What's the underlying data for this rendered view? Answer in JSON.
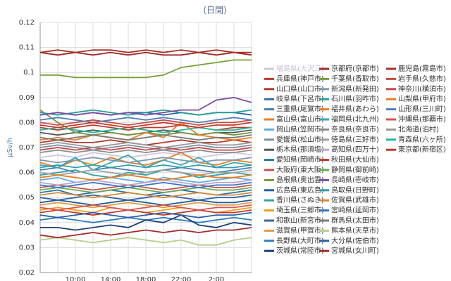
{
  "chart_data": {
    "type": "line",
    "title": "(日間)",
    "y_label": "μSv/h",
    "categories": [
      null,
      null,
      "10:00",
      null,
      "14:00",
      null,
      "18:00",
      null,
      "22:00",
      null,
      "2:00",
      null,
      null
    ],
    "ylim": [
      0.02,
      0.12
    ],
    "yticks": [
      0.02,
      0.03,
      0.04,
      0.05,
      0.06,
      0.07,
      0.08,
      0.09,
      0.1,
      0.11,
      0.12
    ],
    "grid": true,
    "series": [
      {
        "name": "福島県(大沢三)",
        "color": "#d0c8dc",
        "values": [
          0.066,
          0.067,
          0.066,
          0.068,
          0.067,
          0.066,
          0.067,
          0.068,
          0.067,
          0.066,
          0.067,
          0.068,
          0.067
        ]
      },
      {
        "name": "兵庫県(神戸市)",
        "color": "#c0392b",
        "values": [
          0.078,
          0.077,
          0.078,
          0.079,
          0.078,
          0.077,
          0.078,
          0.078,
          0.079,
          0.078,
          0.077,
          0.078,
          0.078
        ]
      },
      {
        "name": "山口県(山口市)",
        "color": "#b03a2e",
        "values": [
          0.072,
          0.073,
          0.072,
          0.072,
          0.073,
          0.072,
          0.071,
          0.072,
          0.073,
          0.072,
          0.072,
          0.073,
          0.072
        ]
      },
      {
        "name": "岐阜県(下呂市)",
        "color": "#2e6da4",
        "values": [
          0.083,
          0.084,
          0.083,
          0.084,
          0.083,
          0.084,
          0.084,
          0.083,
          0.084,
          0.083,
          0.084,
          0.084,
          0.083
        ]
      },
      {
        "name": "三重県(尾鷲市)",
        "color": "#4a7ab8",
        "values": [
          0.061,
          0.062,
          0.06,
          0.061,
          0.062,
          0.061,
          0.06,
          0.061,
          0.062,
          0.061,
          0.06,
          0.061,
          0.062
        ]
      },
      {
        "name": "富山県(富山市)",
        "color": "#e67e22",
        "values": [
          0.064,
          0.062,
          0.065,
          0.063,
          0.066,
          0.064,
          0.063,
          0.065,
          0.068,
          0.064,
          0.063,
          0.065,
          0.064
        ]
      },
      {
        "name": "岡山県(笠岡市)",
        "color": "#5dade2",
        "values": [
          0.057,
          0.058,
          0.056,
          0.057,
          0.058,
          0.057,
          0.056,
          0.058,
          0.057,
          0.056,
          0.057,
          0.058,
          0.057
        ]
      },
      {
        "name": "愛媛県(松山市)",
        "color": "#7f8fa6",
        "values": [
          0.07,
          0.071,
          0.07,
          0.069,
          0.07,
          0.071,
          0.07,
          0.069,
          0.07,
          0.071,
          0.07,
          0.07,
          0.071
        ]
      },
      {
        "name": "栃木県(那須塩)",
        "color": "#555555",
        "values": [
          0.076,
          0.075,
          0.076,
          0.077,
          0.076,
          0.075,
          0.076,
          0.077,
          0.076,
          0.075,
          0.076,
          0.076,
          0.077
        ]
      },
      {
        "name": "愛知県(岡崎市)",
        "color": "#2874a6",
        "values": [
          0.052,
          0.053,
          0.051,
          0.052,
          0.053,
          0.052,
          0.051,
          0.052,
          0.053,
          0.052,
          0.051,
          0.052,
          0.053
        ]
      },
      {
        "name": "大阪府(東大阪)",
        "color": "#c0504d",
        "values": [
          0.054,
          0.055,
          0.054,
          0.053,
          0.054,
          0.055,
          0.054,
          0.053,
          0.054,
          0.055,
          0.054,
          0.054,
          0.055
        ]
      },
      {
        "name": "島根県(奥出雲)",
        "color": "#77933c",
        "values": [
          0.085,
          0.08,
          0.076,
          0.075,
          0.076,
          0.075,
          0.076,
          0.075,
          0.076,
          0.075,
          0.076,
          0.075,
          0.076
        ]
      },
      {
        "name": "広島県(東広島)",
        "color": "#1f5fa0",
        "values": [
          0.048,
          0.049,
          0.048,
          0.047,
          0.048,
          0.049,
          0.048,
          0.047,
          0.048,
          0.049,
          0.048,
          0.048,
          0.049
        ]
      },
      {
        "name": "香川県(さぬき)",
        "color": "#31a3a3",
        "values": [
          0.059,
          0.06,
          0.061,
          0.059,
          0.058,
          0.06,
          0.059,
          0.061,
          0.06,
          0.058,
          0.059,
          0.06,
          0.059
        ]
      },
      {
        "name": "埼玉県(三郷市)",
        "color": "#f39c12",
        "values": [
          0.045,
          0.046,
          0.045,
          0.044,
          0.046,
          0.045,
          0.044,
          0.045,
          0.046,
          0.045,
          0.044,
          0.045,
          0.046
        ]
      },
      {
        "name": "和歌山(新宮市)",
        "color": "#3465a4",
        "values": [
          0.05,
          0.049,
          0.05,
          0.051,
          0.05,
          0.049,
          0.05,
          0.051,
          0.05,
          0.049,
          0.05,
          0.05,
          0.051
        ]
      },
      {
        "name": "滋賀県(甲賀市)",
        "color": "#e59a3c",
        "values": [
          0.047,
          0.048,
          0.047,
          0.046,
          0.047,
          0.048,
          0.047,
          0.046,
          0.047,
          0.048,
          0.047,
          0.047,
          0.048
        ]
      },
      {
        "name": "長野県(大町市)",
        "color": "#2d7fc0",
        "values": [
          0.041,
          0.042,
          0.041,
          0.04,
          0.041,
          0.042,
          0.041,
          0.042,
          0.041,
          0.04,
          0.041,
          0.042,
          0.041
        ]
      },
      {
        "name": "茨城県(常陸市)",
        "color": "#1d3f78",
        "values": [
          0.038,
          0.038,
          0.037,
          0.038,
          0.039,
          0.038,
          0.041,
          0.04,
          0.043,
          0.039,
          0.038,
          0.04,
          0.039
        ]
      },
      {
        "name": "京都府(京都市)",
        "color": "#9b2c2c",
        "values": [
          0.108,
          0.107,
          0.108,
          0.107,
          0.108,
          0.107,
          0.108,
          0.107,
          0.107,
          0.108,
          0.107,
          0.108,
          0.107
        ]
      },
      {
        "name": "千葉県(香取市)",
        "color": "#76a033",
        "values": [
          0.099,
          0.099,
          0.098,
          0.098,
          0.098,
          0.098,
          0.098,
          0.099,
          0.102,
          0.103,
          0.104,
          0.105,
          0.105
        ]
      },
      {
        "name": "新潟県(新発田)",
        "color": "#8496b0",
        "values": [
          0.065,
          0.064,
          0.065,
          0.066,
          0.065,
          0.064,
          0.065,
          0.066,
          0.065,
          0.064,
          0.065,
          0.065,
          0.066
        ]
      },
      {
        "name": "石川県(羽咋市)",
        "color": "#2aa198",
        "values": [
          0.084,
          0.083,
          0.084,
          0.085,
          0.084,
          0.083,
          0.084,
          0.085,
          0.084,
          0.083,
          0.084,
          0.084,
          0.085
        ]
      },
      {
        "name": "福井県(あわら)",
        "color": "#e8802a",
        "values": [
          0.073,
          0.074,
          0.073,
          0.075,
          0.074,
          0.073,
          0.076,
          0.074,
          0.08,
          0.075,
          0.074,
          0.073,
          0.074
        ]
      },
      {
        "name": "福岡県(北九州)",
        "color": "#3aa6b9",
        "values": [
          0.063,
          0.062,
          0.066,
          0.061,
          0.064,
          0.067,
          0.062,
          0.065,
          0.063,
          0.066,
          0.062,
          0.064,
          0.063
        ]
      },
      {
        "name": "奈良県(奈良市)",
        "color": "#8c8c8c",
        "values": [
          0.068,
          0.069,
          0.068,
          0.069,
          0.068,
          0.069,
          0.068,
          0.069,
          0.068,
          0.069,
          0.068,
          0.068,
          0.069
        ]
      },
      {
        "name": "徳島県(三好市)",
        "color": "#a0a0a0",
        "values": [
          0.06,
          0.059,
          0.06,
          0.061,
          0.06,
          0.059,
          0.06,
          0.061,
          0.06,
          0.059,
          0.06,
          0.06,
          0.061
        ]
      },
      {
        "name": "高知県(四万十)",
        "color": "#b8a8d0",
        "values": [
          0.056,
          0.055,
          0.056,
          0.057,
          0.056,
          0.055,
          0.056,
          0.057,
          0.056,
          0.055,
          0.056,
          0.056,
          0.057
        ]
      },
      {
        "name": "秋田県(大仙市)",
        "color": "#c0392b",
        "values": [
          0.044,
          0.045,
          0.044,
          0.043,
          0.044,
          0.045,
          0.044,
          0.043,
          0.044,
          0.045,
          0.044,
          0.044,
          0.045
        ]
      },
      {
        "name": "静岡県(御前崎)",
        "color": "#6aa84f",
        "values": [
          0.053,
          0.054,
          0.053,
          0.052,
          0.053,
          0.054,
          0.053,
          0.052,
          0.053,
          0.054,
          0.053,
          0.053,
          0.054
        ]
      },
      {
        "name": "長崎県(壱岐市)",
        "color": "#7b4ea3",
        "values": [
          0.083,
          0.084,
          0.083,
          0.084,
          0.083,
          0.084,
          0.083,
          0.084,
          0.085,
          0.085,
          0.089,
          0.09,
          0.088
        ]
      },
      {
        "name": "鳥取県(日野町)",
        "color": "#2c9fa8",
        "values": [
          0.062,
          0.063,
          0.062,
          0.063,
          0.062,
          0.063,
          0.062,
          0.063,
          0.062,
          0.063,
          0.062,
          0.062,
          0.063
        ]
      },
      {
        "name": "佐賀県(武雄市)",
        "color": "#d68a3a",
        "values": [
          0.051,
          0.052,
          0.051,
          0.05,
          0.051,
          0.052,
          0.051,
          0.05,
          0.051,
          0.052,
          0.051,
          0.051,
          0.052
        ]
      },
      {
        "name": "宮崎県(延岡市)",
        "color": "#3a75c4",
        "values": [
          0.055,
          0.054,
          0.055,
          0.056,
          0.055,
          0.054,
          0.055,
          0.056,
          0.055,
          0.054,
          0.055,
          0.055,
          0.056
        ]
      },
      {
        "name": "群馬県(太田市)",
        "color": "#7a7a7a",
        "values": [
          0.074,
          0.073,
          0.074,
          0.075,
          0.074,
          0.073,
          0.074,
          0.075,
          0.074,
          0.073,
          0.074,
          0.074,
          0.075
        ]
      },
      {
        "name": "熊本県(天草市)",
        "color": "#b5d08a",
        "values": [
          0.033,
          0.034,
          0.033,
          0.032,
          0.033,
          0.034,
          0.033,
          0.032,
          0.033,
          0.031,
          0.031,
          0.033,
          0.034
        ]
      },
      {
        "name": "大分県(佐伯市)",
        "color": "#2e5fa8",
        "values": [
          0.043,
          0.042,
          0.043,
          0.044,
          0.043,
          0.042,
          0.043,
          0.044,
          0.043,
          0.042,
          0.043,
          0.043,
          0.044
        ]
      },
      {
        "name": "宮城県(女川町)",
        "color": "#a52a2a",
        "values": [
          0.035,
          0.034,
          0.035,
          0.036,
          0.035,
          0.036,
          0.037,
          0.036,
          0.037,
          0.036,
          0.037,
          0.037,
          0.038
        ]
      },
      {
        "name": "鹿児島(霧島市)",
        "color": "#a93226",
        "values": [
          0.108,
          0.109,
          0.108,
          0.109,
          0.109,
          0.108,
          0.109,
          0.108,
          0.109,
          0.108,
          0.109,
          0.108,
          0.108
        ]
      },
      {
        "name": "岩手県(久慈市)",
        "color": "#cd4a3f",
        "values": [
          0.08,
          0.079,
          0.08,
          0.081,
          0.08,
          0.079,
          0.08,
          0.081,
          0.08,
          0.079,
          0.08,
          0.08,
          0.081
        ]
      },
      {
        "name": "神奈川(横須市)",
        "color": "#cc4444",
        "values": [
          0.069,
          0.07,
          0.069,
          0.07,
          0.069,
          0.07,
          0.069,
          0.07,
          0.069,
          0.07,
          0.069,
          0.069,
          0.07
        ]
      },
      {
        "name": "山梨県(甲府市)",
        "color": "#e67e22",
        "values": [
          0.058,
          0.059,
          0.058,
          0.057,
          0.058,
          0.059,
          0.058,
          0.057,
          0.058,
          0.059,
          0.058,
          0.058,
          0.059
        ]
      },
      {
        "name": "山形県(三川町)",
        "color": "#4f81bd",
        "values": [
          0.081,
          0.082,
          0.081,
          0.08,
          0.081,
          0.082,
          0.081,
          0.082,
          0.081,
          0.08,
          0.081,
          0.082,
          0.081
        ]
      },
      {
        "name": "沖縄県(那覇市)",
        "color": "#d9534f",
        "values": [
          0.046,
          0.045,
          0.046,
          0.047,
          0.046,
          0.045,
          0.046,
          0.047,
          0.046,
          0.045,
          0.046,
          0.046,
          0.047
        ]
      },
      {
        "name": "北海道(泊村)",
        "color": "#999999",
        "values": [
          0.071,
          0.072,
          0.071,
          0.07,
          0.071,
          0.072,
          0.071,
          0.07,
          0.071,
          0.072,
          0.071,
          0.071,
          0.072
        ]
      },
      {
        "name": "青森県(六ヶ所)",
        "color": "#1abc9c",
        "values": [
          0.077,
          0.078,
          0.077,
          0.076,
          0.077,
          0.078,
          0.077,
          0.076,
          0.077,
          0.078,
          0.077,
          0.077,
          0.078
        ]
      },
      {
        "name": "東京都(新宿区)",
        "color": "#c0392b",
        "values": [
          0.079,
          0.078,
          0.079,
          0.08,
          0.079,
          0.078,
          0.079,
          0.08,
          0.079,
          0.078,
          0.079,
          0.079,
          0.08
        ]
      }
    ]
  }
}
